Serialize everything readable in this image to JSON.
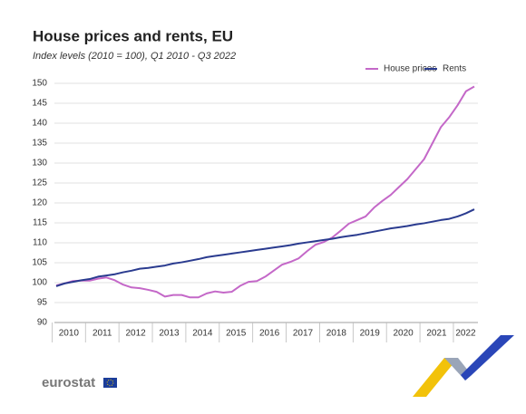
{
  "chart_data": {
    "type": "line",
    "title": "House prices and rents, EU",
    "subtitle": "Index levels (2010 = 100),  Q1 2010 - Q3 2022",
    "categories": [
      null,
      "2010",
      null,
      null,
      null,
      "2011",
      null,
      null,
      null,
      "2012",
      null,
      null,
      null,
      "2013",
      null,
      null,
      null,
      "2014",
      null,
      null,
      null,
      "2015",
      null,
      null,
      null,
      "2016",
      null,
      null,
      null,
      "2017",
      null,
      null,
      null,
      "2018",
      null,
      null,
      null,
      "2019",
      null,
      null,
      null,
      "2020",
      null,
      null,
      null,
      "2021",
      null,
      null,
      null,
      "2022",
      null
    ],
    "series": [
      {
        "name": "House prices",
        "color": "#c468c8",
        "values": [
          99.3,
          99.8,
          100.4,
          100.5,
          100.5,
          101.0,
          101.3,
          100.6,
          99.5,
          98.8,
          98.6,
          98.2,
          97.7,
          96.5,
          96.9,
          96.9,
          96.3,
          96.3,
          97.3,
          97.8,
          97.5,
          97.7,
          99.2,
          100.2,
          100.4,
          101.5,
          103.0,
          104.5,
          105.2,
          106.1,
          107.9,
          109.5,
          110.2,
          111.3,
          113.0,
          114.8,
          115.7,
          116.6,
          118.8,
          120.5,
          122.0,
          124.0,
          126.0,
          128.5,
          131.0,
          135.0,
          139.0,
          141.5,
          144.5,
          148.0,
          149.2
        ]
      },
      {
        "name": "Rents",
        "color": "#2a3b8f",
        "values": [
          99.1,
          99.8,
          100.2,
          100.6,
          100.9,
          101.5,
          101.8,
          102.1,
          102.6,
          103.0,
          103.5,
          103.7,
          104.0,
          104.3,
          104.8,
          105.1,
          105.5,
          105.9,
          106.4,
          106.7,
          107.0,
          107.3,
          107.6,
          107.9,
          108.2,
          108.5,
          108.8,
          109.1,
          109.4,
          109.8,
          110.1,
          110.4,
          110.7,
          111.0,
          111.4,
          111.7,
          112.0,
          112.4,
          112.8,
          113.2,
          113.6,
          113.9,
          114.2,
          114.6,
          114.9,
          115.3,
          115.7,
          116.0,
          116.6,
          117.4,
          118.4
        ]
      }
    ],
    "ylim": [
      90,
      150
    ],
    "yticks": [
      90,
      95,
      100,
      105,
      110,
      115,
      120,
      125,
      130,
      135,
      140,
      145,
      150
    ],
    "grid": true,
    "legend": "top-right",
    "logo": "eurostat"
  }
}
